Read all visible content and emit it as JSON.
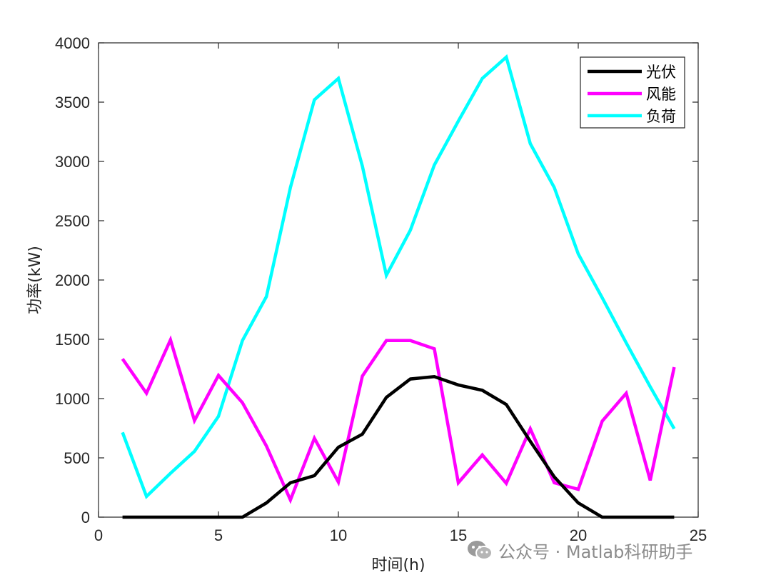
{
  "chart_data": {
    "type": "line",
    "title": "",
    "xlabel": "时间(h)",
    "ylabel": "功率(kW)",
    "xlim": [
      0,
      25
    ],
    "ylim": [
      0,
      4000
    ],
    "xticks": [
      0,
      5,
      10,
      15,
      20,
      25
    ],
    "yticks": [
      0,
      500,
      1000,
      1500,
      2000,
      2500,
      3000,
      3500,
      4000
    ],
    "grid": false,
    "legend_position": "top-right",
    "x": [
      1,
      2,
      3,
      4,
      5,
      6,
      7,
      8,
      9,
      10,
      11,
      12,
      13,
      14,
      15,
      16,
      17,
      18,
      19,
      20,
      21,
      22,
      23,
      24
    ],
    "series": [
      {
        "name": "光伏",
        "color": "#000000",
        "values": [
          0,
          0,
          0,
          0,
          0,
          0,
          120,
          290,
          350,
          590,
          700,
          1010,
          1165,
          1185,
          1115,
          1070,
          950,
          640,
          340,
          120,
          0,
          0,
          0,
          0
        ]
      },
      {
        "name": "风能",
        "color": "#ff00ff",
        "values": [
          1335,
          1045,
          1495,
          815,
          1195,
          965,
          600,
          145,
          665,
          295,
          1190,
          1490,
          1490,
          1420,
          290,
          525,
          285,
          745,
          290,
          235,
          810,
          1045,
          310,
          1265
        ]
      },
      {
        "name": "负荷",
        "color": "#00ffff",
        "values": [
          715,
          175,
          370,
          555,
          850,
          1490,
          1860,
          2780,
          3520,
          3700,
          2960,
          2040,
          2420,
          2970,
          3340,
          3700,
          3880,
          3150,
          2780,
          2220,
          1850,
          1470,
          1100,
          745
        ]
      }
    ]
  },
  "watermark": {
    "text": "公众号 · Matlab科研助手",
    "icon": "wechat-icon"
  }
}
